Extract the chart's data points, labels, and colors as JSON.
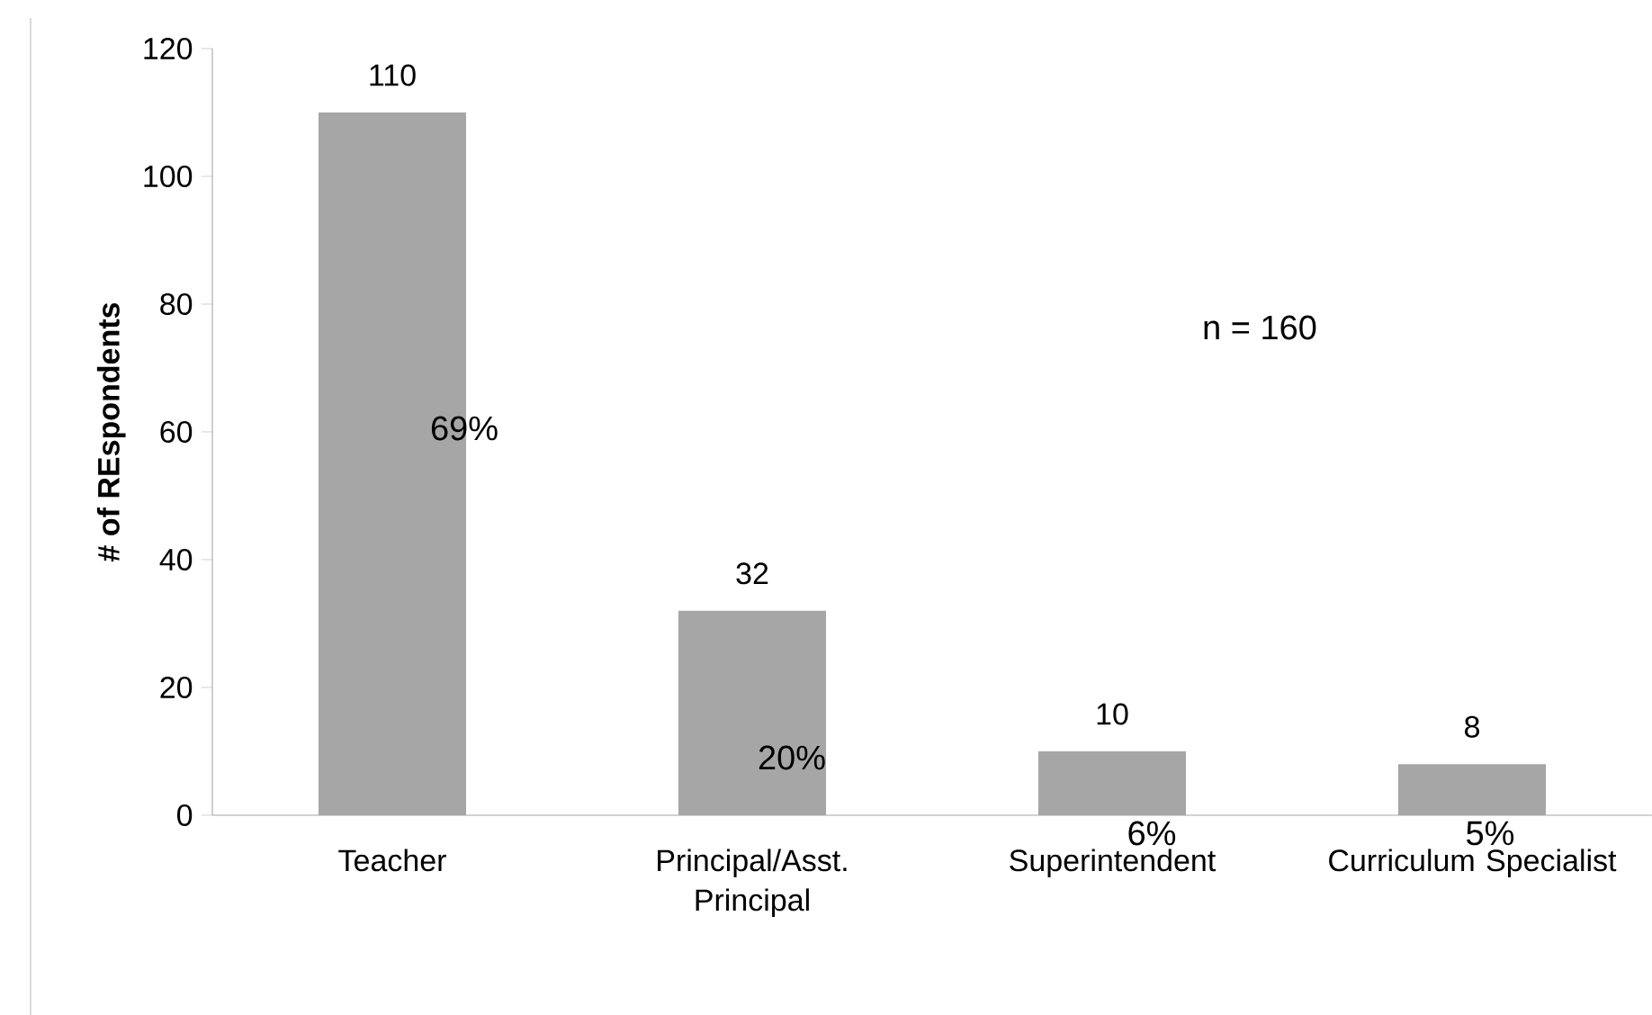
{
  "chart_data": {
    "type": "bar",
    "categories": [
      "Teacher",
      "Principal/Asst. Principal",
      "Superintendent",
      "Curriculum Specialist"
    ],
    "values": [
      110,
      32,
      10,
      8
    ],
    "color": "#a6a6a6",
    "ylabel": "# of REspondents",
    "ylim": [
      0,
      120
    ],
    "yticks": [
      0,
      20,
      40,
      60,
      80,
      100,
      120
    ],
    "data_labels": true,
    "grid": false,
    "annotations": [
      "69%",
      "20%",
      "6%",
      "5%",
      "n = 160"
    ]
  }
}
